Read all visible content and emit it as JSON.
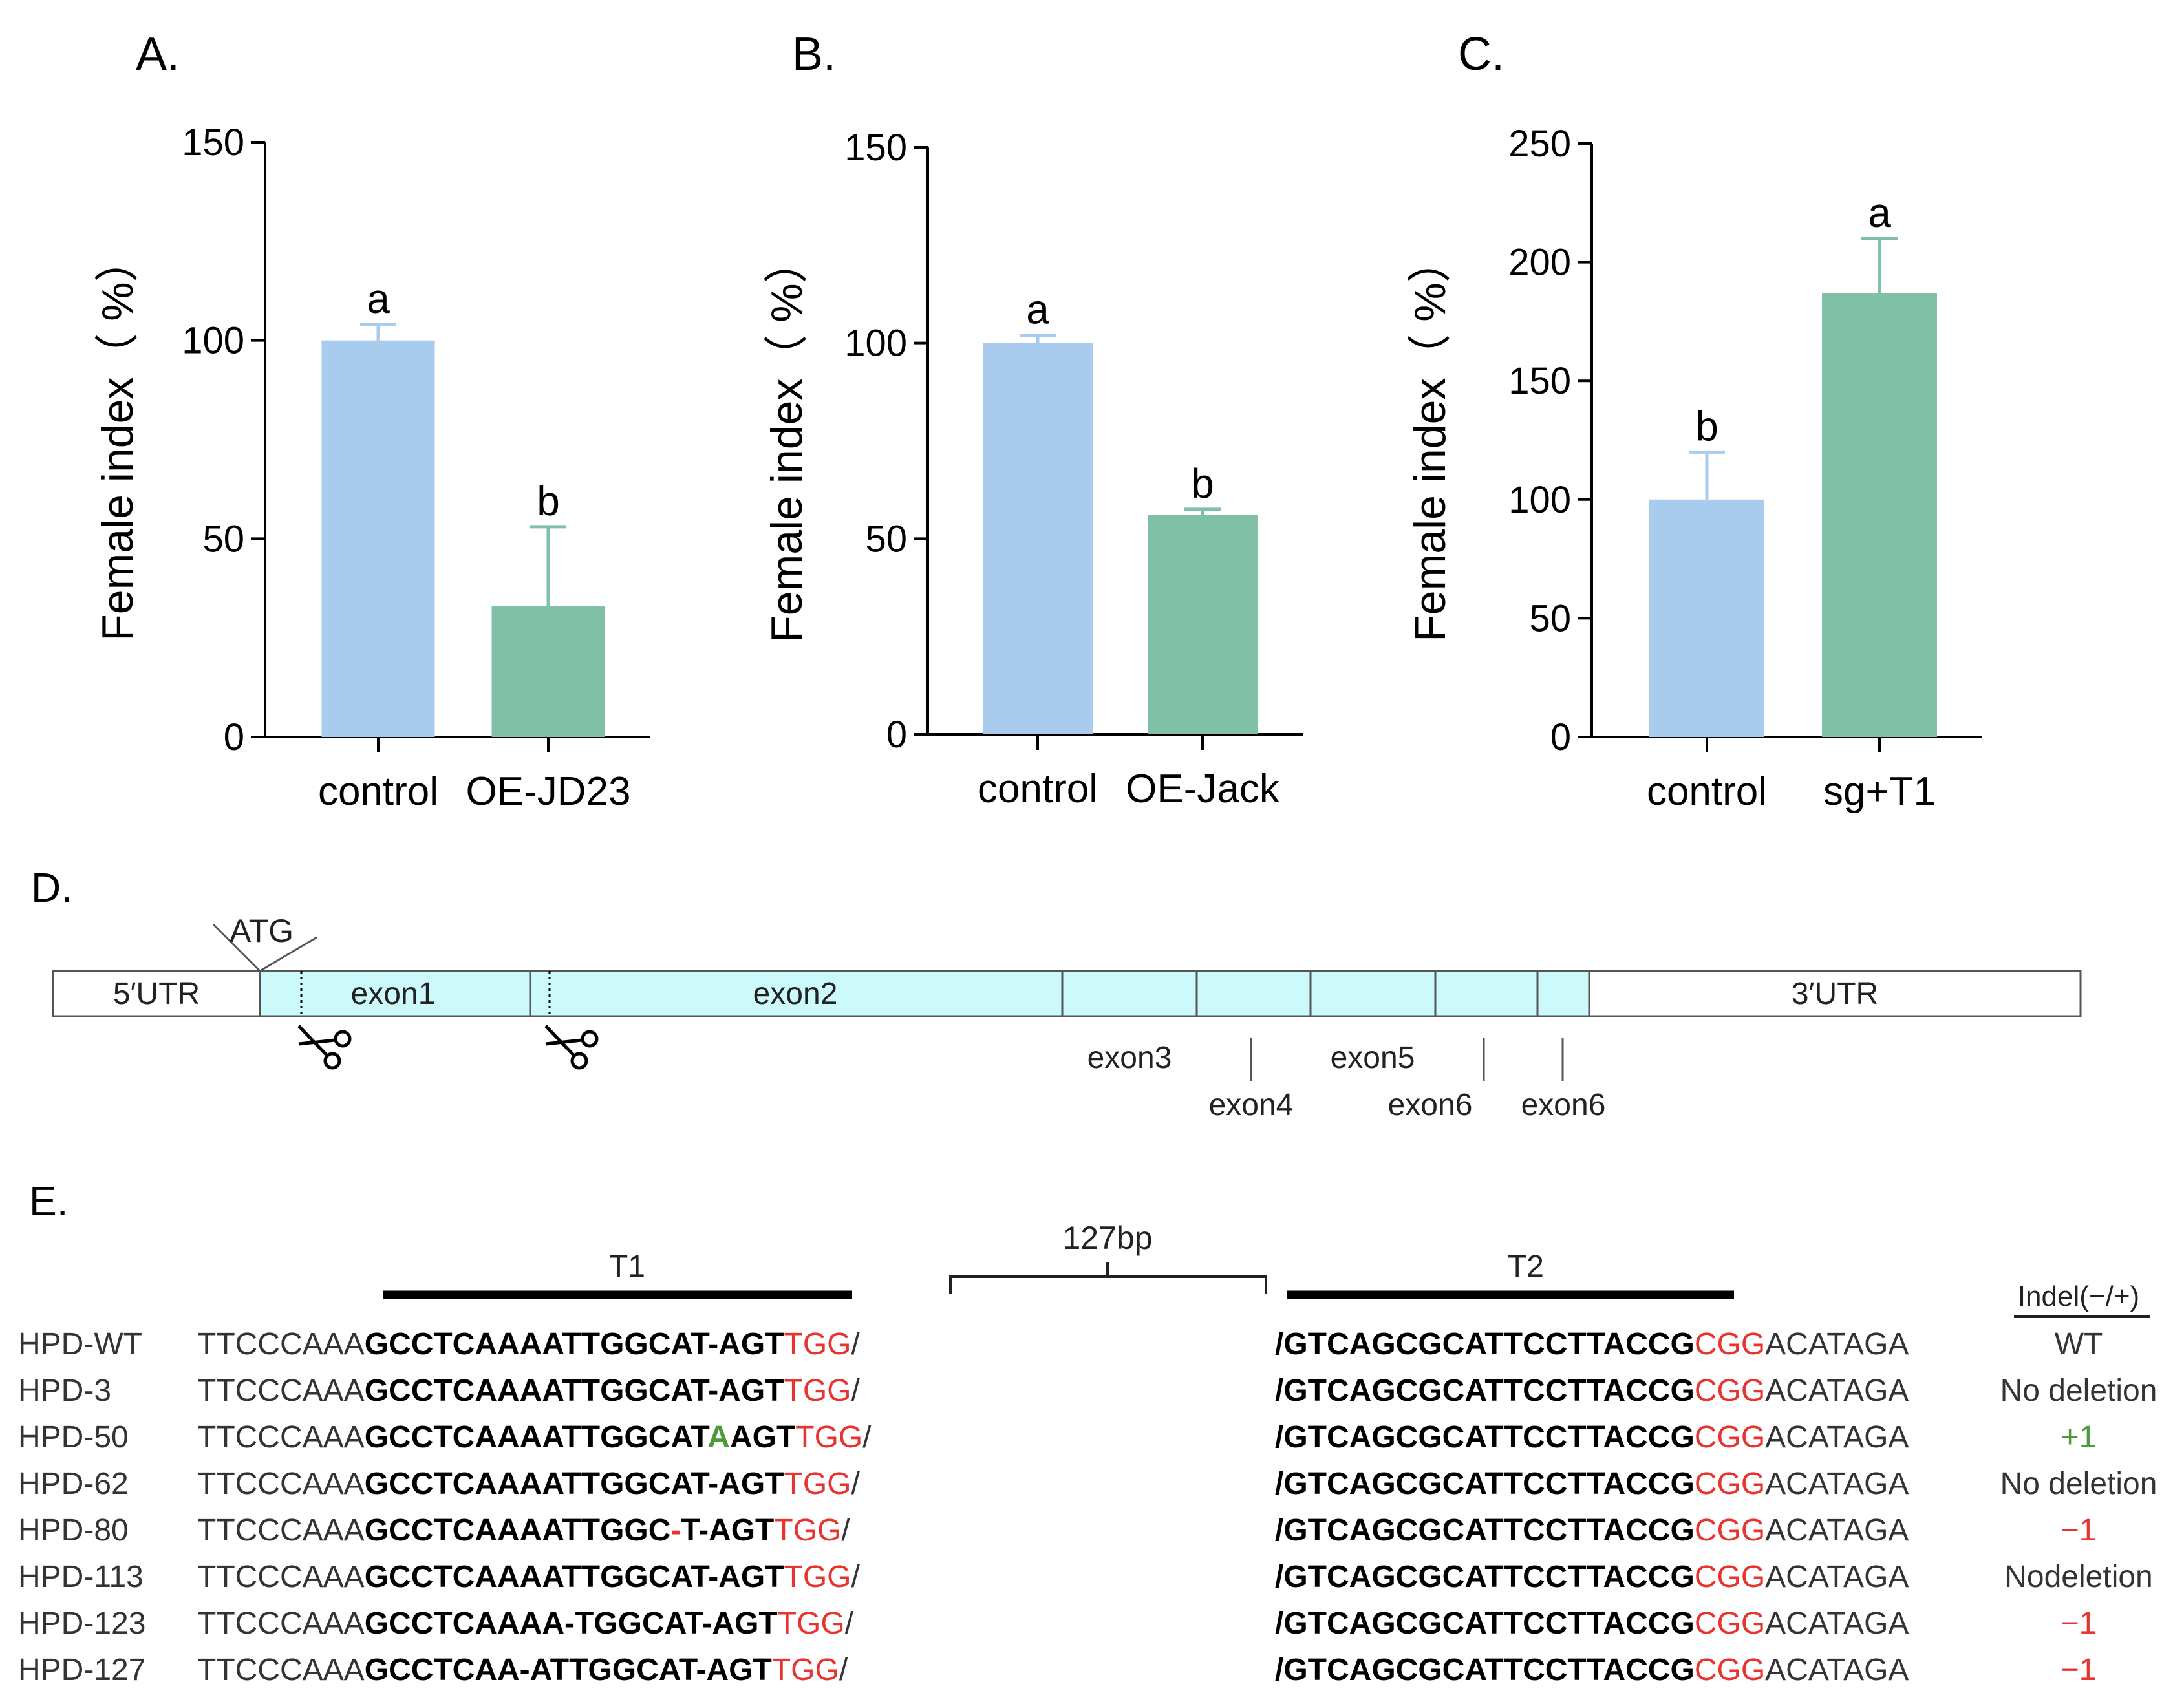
{
  "colors": {
    "control_bar": "#A9CBEE",
    "treatment_bar": "#7FC0A6",
    "exon_fill": "#CCFAFB",
    "red": "#E8342E",
    "green": "#4E9A3A"
  },
  "panel_labels": {
    "a": "A.",
    "b": "B.",
    "c": "C.",
    "d": "D.",
    "e": "E."
  },
  "chart_data": [
    {
      "type": "bar",
      "panel": "A.",
      "title": "",
      "xlabel": "",
      "ylabel": "Female index（ %）",
      "ylim": [
        0,
        150
      ],
      "yticks": [
        0,
        50,
        100,
        150
      ],
      "categories": [
        "control",
        "OE-JD23"
      ],
      "values": [
        100,
        33
      ],
      "errors": [
        4,
        20
      ],
      "significance": [
        "a",
        "b"
      ]
    },
    {
      "type": "bar",
      "panel": "B.",
      "title": "",
      "xlabel": "",
      "ylabel": "Female index（ %）",
      "ylim": [
        0,
        150
      ],
      "yticks": [
        0,
        50,
        100,
        150
      ],
      "categories": [
        "control",
        "OE-Jack"
      ],
      "values": [
        100,
        56
      ],
      "errors": [
        2,
        1.5
      ],
      "significance": [
        "a",
        "b"
      ]
    },
    {
      "type": "bar",
      "panel": "C.",
      "title": "",
      "xlabel": "",
      "ylabel": "Female index（ %）",
      "ylim": [
        0,
        250
      ],
      "yticks": [
        0,
        50,
        100,
        150,
        200,
        250
      ],
      "categories": [
        "control",
        "sg+T1"
      ],
      "values": [
        100,
        187
      ],
      "errors": [
        20,
        23
      ],
      "significance": [
        "b",
        "a"
      ]
    }
  ],
  "gene": {
    "atg": "ATG",
    "utr5": "5′UTR",
    "utr3": "3′UTR",
    "exon1": "exon1",
    "exon2": "exon2",
    "exon3": "exon3",
    "exon4": "exon4",
    "exon5": "exon5",
    "exon6a": "exon6",
    "exon6b": "exon6"
  },
  "alignment": {
    "t1_label": "T1",
    "t2_label": "T2",
    "gap_label": "127bp",
    "indel_header": "Indel(−/+)",
    "rows": [
      {
        "name": "HPD-WT",
        "t1_pre": "TTCCCAAA",
        "t1_bold_a": "GCCTCAAAATTGGCAT",
        "t1_mark": "-",
        "t1_bold_b": "AGT",
        "pam1": "TGG",
        "slash1": "/",
        "slash2": "/",
        "t2_bold": "GTCAGCGCATTCCTTACCG",
        "pam2": "CGG",
        "t2_post": "ACATAGA",
        "indel": "WT"
      },
      {
        "name": "HPD-3",
        "t1_pre": "TTCCCAAA",
        "t1_bold_a": "GCCTCAAAATTGGCAT",
        "t1_mark": "-",
        "t1_bold_b": "AGT",
        "pam1": "TGG",
        "slash1": "/",
        "slash2": "/",
        "t2_bold": "GTCAGCGCATTCCTTACCG",
        "pam2": "CGG",
        "t2_post": "ACATAGA",
        "indel": "No deletion"
      },
      {
        "name": "HPD-50",
        "t1_pre": "TTCCCAAA",
        "t1_bold_a": "GCCTCAAAATTGGCAT",
        "t1_mark": "A",
        "t1_bold_b": "AGT",
        "pam1": "TGG",
        "slash1": "/",
        "slash2": "/",
        "t2_bold": "GTCAGCGCATTCCTTACCG",
        "pam2": "CGG",
        "t2_post": "ACATAGA",
        "indel": "+1"
      },
      {
        "name": "HPD-62",
        "t1_pre": "TTCCCAAA",
        "t1_bold_a": "GCCTCAAAATTGGCAT",
        "t1_mark": "-",
        "t1_bold_b": "AGT",
        "pam1": "TGG",
        "slash1": "/",
        "slash2": "/",
        "t2_bold": "GTCAGCGCATTCCTTACCG",
        "pam2": "CGG",
        "t2_post": "ACATAGA",
        "indel": "No deletion"
      },
      {
        "name": "HPD-80",
        "t1_pre": "TTCCCAAA",
        "t1_bold_a": "GCCTCAAAATTGGC",
        "t1_mark": "-",
        "t1_bold_b": "T-AGT",
        "pam1": "TGG",
        "slash1": "/",
        "slash2": "/",
        "t2_bold": "GTCAGCGCATTCCTTACCG",
        "pam2": "CGG",
        "t2_post": "ACATAGA",
        "indel": "−1"
      },
      {
        "name": "HPD-113",
        "t1_pre": "TTCCCAAA",
        "t1_bold_a": "GCCTCAAAATTGGCAT",
        "t1_mark": "-",
        "t1_bold_b": "AGT",
        "pam1": "TGG",
        "slash1": "/",
        "slash2": "/",
        "t2_bold": "GTCAGCGCATTCCTTACCG",
        "pam2": "CGG",
        "t2_post": "ACATAGA",
        "indel": "Nodeletion"
      },
      {
        "name": "HPD-123",
        "t1_pre": "TTCCCAAA",
        "t1_bold_a": "GCCTCAAAA",
        "t1_mark": "-",
        "t1_bold_b": "TGGCAT-AGT",
        "pam1": "TGG",
        "slash1": "/",
        "slash2": "/",
        "t2_bold": "GTCAGCGCATTCCTTACCG",
        "pam2": "CGG",
        "t2_post": "ACATAGA",
        "indel": "−1"
      },
      {
        "name": "HPD-127",
        "t1_pre": "TTCCCAAA",
        "t1_bold_a": "GCCTCAA",
        "t1_mark": "-",
        "t1_bold_b": "ATTGGCAT-AGT",
        "pam1": "TGG",
        "slash1": "/",
        "slash2": "/",
        "t2_bold": "GTCAGCGCATTCCTTACCG",
        "pam2": "CGG",
        "t2_post": "ACATAGA",
        "indel": "−1"
      }
    ]
  }
}
